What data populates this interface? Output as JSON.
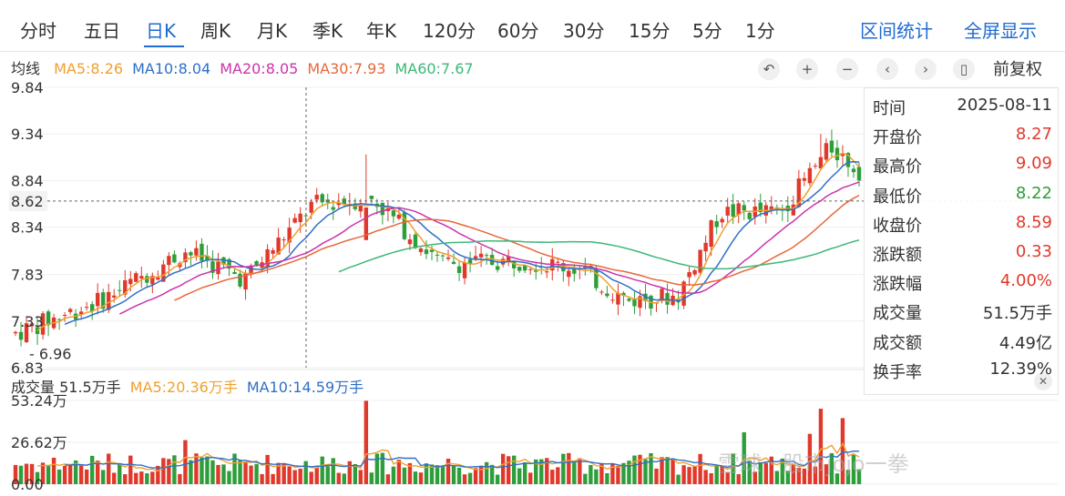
{
  "tabs": [
    {
      "label": "分时"
    },
    {
      "label": "五日"
    },
    {
      "label": "日K"
    },
    {
      "label": "周K"
    },
    {
      "label": "月K"
    },
    {
      "label": "季K"
    },
    {
      "label": "年K"
    },
    {
      "label": "120分"
    },
    {
      "label": "60分"
    },
    {
      "label": "30分"
    },
    {
      "label": "15分"
    },
    {
      "label": "5分"
    },
    {
      "label": "1分"
    }
  ],
  "active_tab": "日K",
  "right_links": {
    "interval_stats": "区间统计",
    "fullscreen": "全屏显示"
  },
  "ma_legend": {
    "title": "均线",
    "items": [
      {
        "text": "MA5:8.26",
        "color": "#f0a030"
      },
      {
        "text": "MA10:8.04",
        "color": "#2f6fc8"
      },
      {
        "text": "MA20:8.05",
        "color": "#cc33aa"
      },
      {
        "text": "MA30:7.93",
        "color": "#e8673a"
      },
      {
        "text": "MA60:7.67",
        "color": "#3cb878"
      }
    ]
  },
  "controls": [
    {
      "icon": "undo-icon",
      "glyph": "↶"
    },
    {
      "icon": "zoom-in-icon",
      "glyph": "+"
    },
    {
      "icon": "zoom-out-icon",
      "glyph": "−"
    },
    {
      "icon": "prev-icon",
      "glyph": "‹"
    },
    {
      "icon": "next-icon",
      "glyph": "›"
    },
    {
      "icon": "candle-icon",
      "glyph": "▯"
    }
  ],
  "adjust_label": "前复权",
  "volume_legend": {
    "items": [
      {
        "text": "成交量 51.5万手",
        "color": "#333333"
      },
      {
        "text": "MA5:20.36万手",
        "color": "#f0a030"
      },
      {
        "text": "MA10:14.59万手",
        "color": "#2f6fc8"
      }
    ]
  },
  "info_panel": {
    "rows": [
      {
        "key": "时间",
        "value": "2025-08-11",
        "color": "#333333"
      },
      {
        "key": "开盘价",
        "value": "8.27",
        "color": "#e0392b"
      },
      {
        "key": "最高价",
        "value": "9.09",
        "color": "#e0392b"
      },
      {
        "key": "最低价",
        "value": "8.22",
        "color": "#2e9e3a"
      },
      {
        "key": "收盘价",
        "value": "8.59",
        "color": "#e0392b"
      },
      {
        "key": "涨跌额",
        "value": "0.33",
        "color": "#e0392b"
      },
      {
        "key": "涨跌幅",
        "value": "4.00%",
        "color": "#e0392b"
      },
      {
        "key": "成交量",
        "value": "51.5万手",
        "color": "#333333"
      },
      {
        "key": "成交额",
        "value": "4.49亿",
        "color": "#333333"
      },
      {
        "key": "换手率",
        "value": "12.39%",
        "color": "#333333"
      }
    ]
  },
  "watermark": "雪球 · 股市jojo一拳",
  "chart_data": {
    "type": "candlestick",
    "price_axis": {
      "ticks": [
        "9.84",
        "9.34",
        "8.84",
        "8.62",
        "8.34",
        "7.83",
        "7.33",
        "6.83"
      ],
      "min_label": "6.96",
      "ylim": [
        6.83,
        9.84
      ]
    },
    "volume_axis": {
      "ticks": [
        "53.24万",
        "26.62万",
        "0.00"
      ],
      "ylim": [
        0,
        53.24
      ]
    },
    "ma_colors": {
      "ma5": "#f0a030",
      "ma10": "#2f6fc8",
      "ma20": "#cc33aa",
      "ma30": "#e8673a",
      "ma60": "#3cb878"
    },
    "up_color": "#e0392b",
    "down_color": "#2e9e3a",
    "candles": []
  }
}
